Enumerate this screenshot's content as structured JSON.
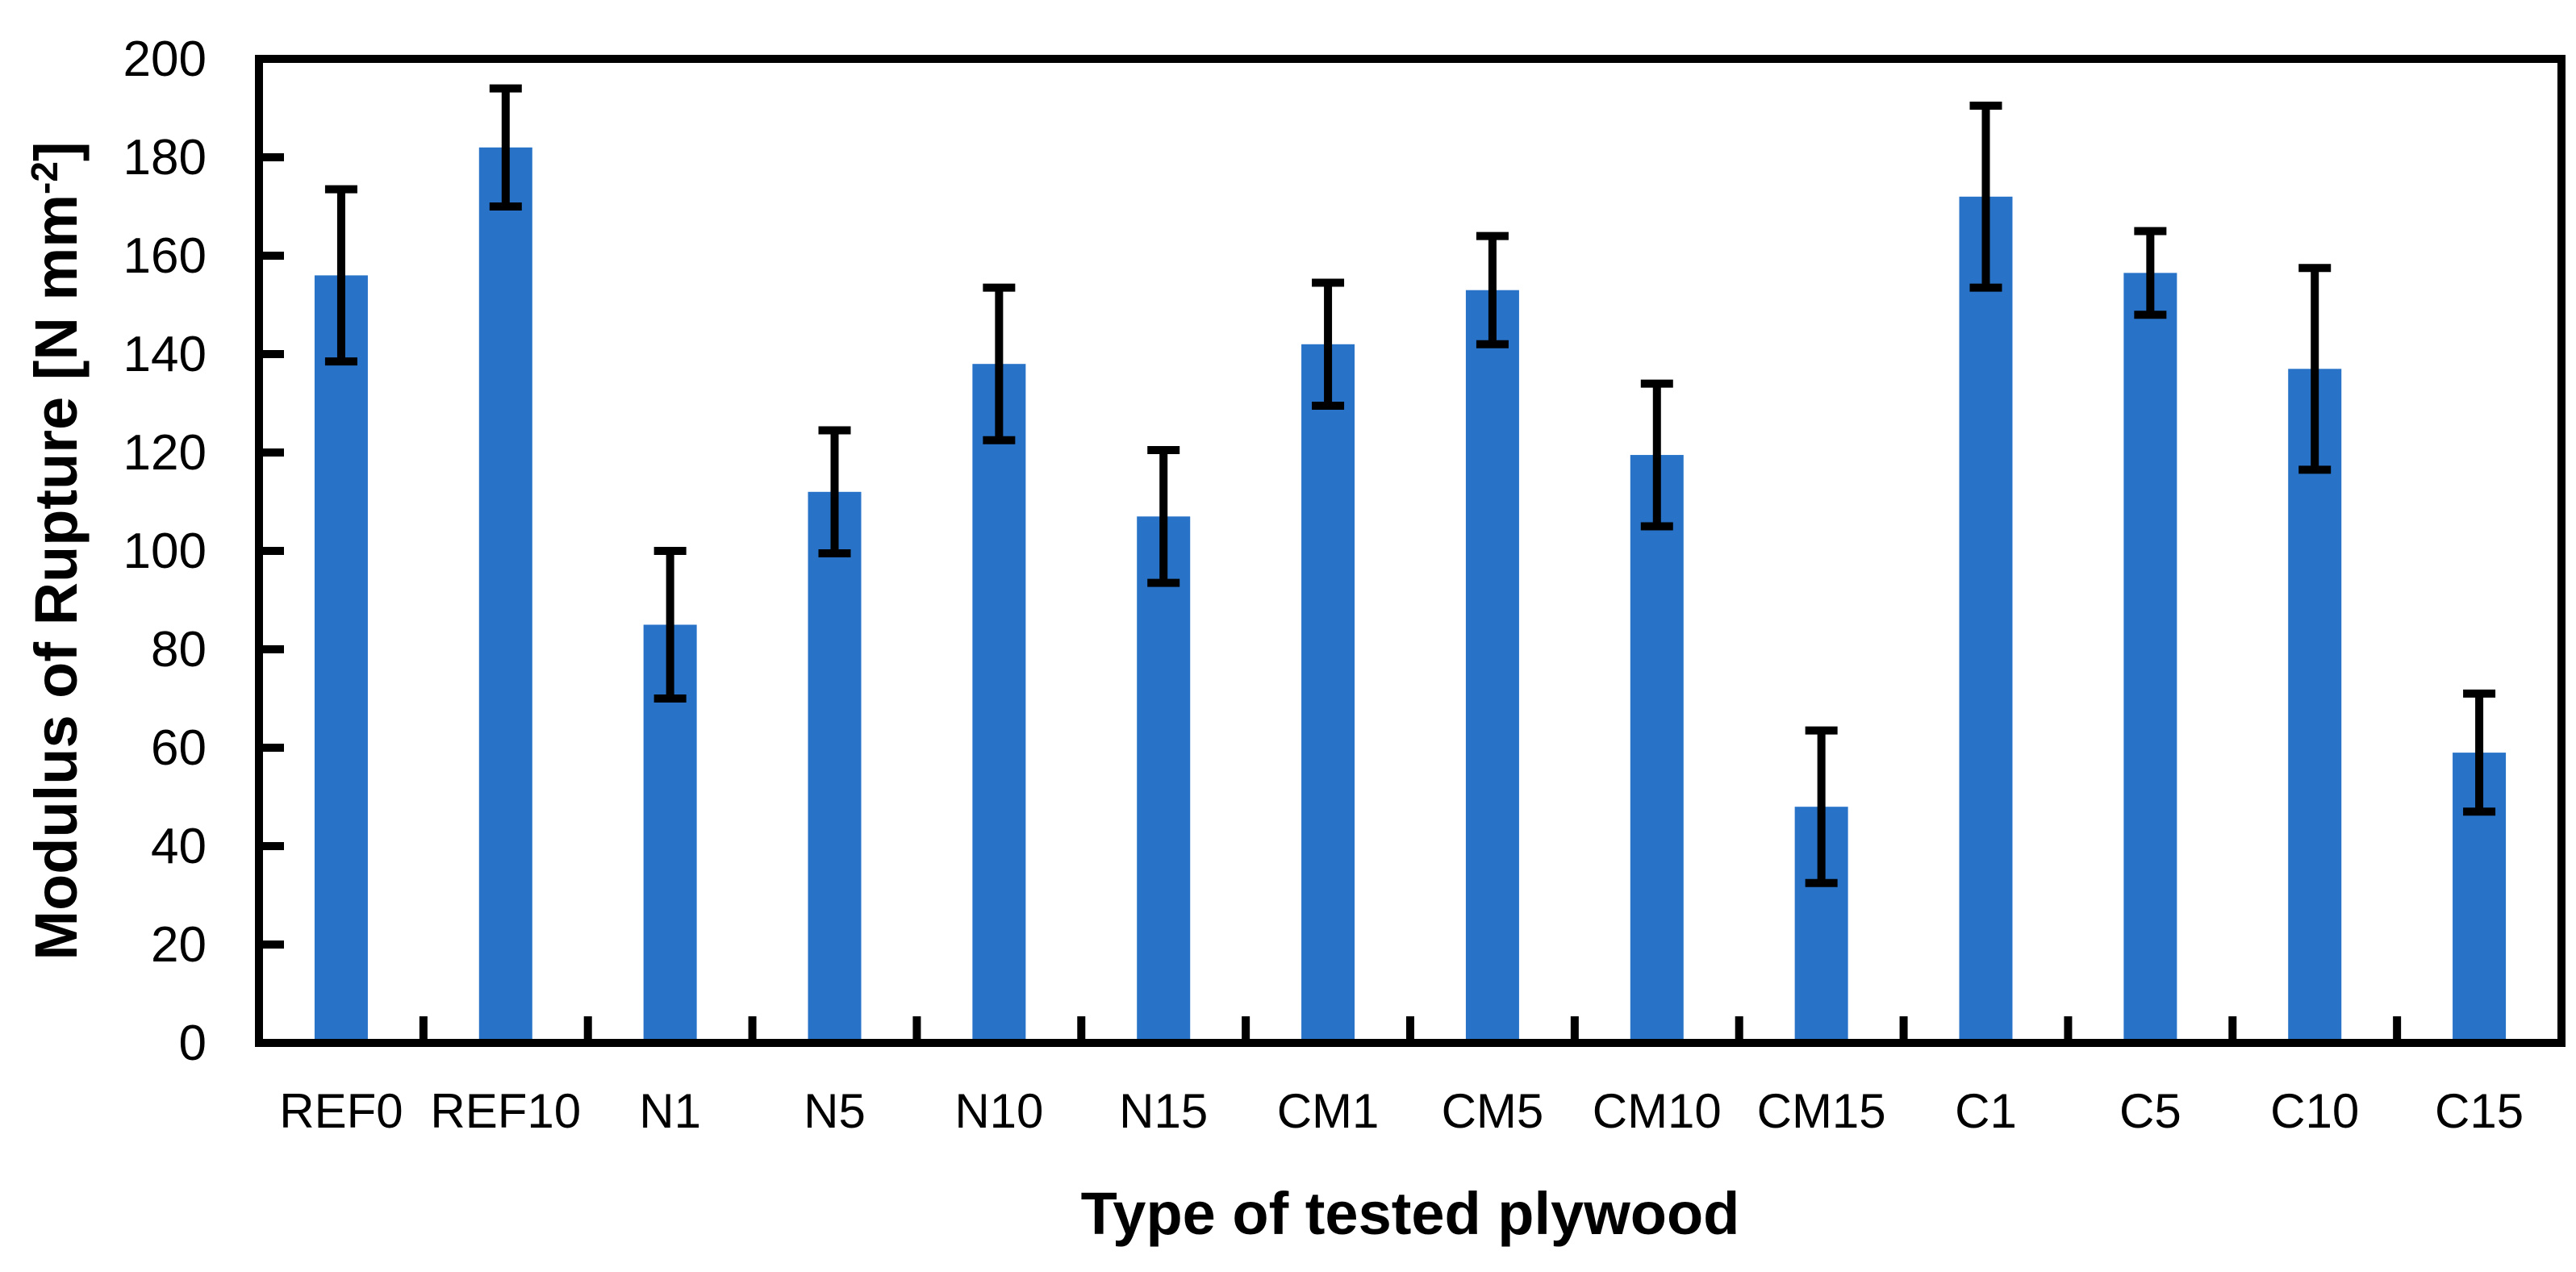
{
  "chart_data": {
    "type": "bar",
    "title": "",
    "xlabel": "Type of tested plywood",
    "ylabel": "Modulus of Rupture [N mm⁻²]",
    "ylabel_parts": {
      "pre": "Modulus of Rupture [N mm",
      "sup": "-2",
      "post": "]"
    },
    "categories": [
      "REF0",
      "REF10",
      "N1",
      "N5",
      "N10",
      "N15",
      "CM1",
      "CM5",
      "CM10",
      "CM15",
      "C1",
      "C5",
      "C10",
      "C15"
    ],
    "series": [
      {
        "name": "Modulus of Rupture",
        "values": [
          156,
          182,
          85,
          112,
          138,
          107,
          142,
          153,
          119.5,
          48,
          172,
          156.5,
          137,
          59
        ],
        "error_bars": [
          17.5,
          12,
          15,
          12.5,
          15.5,
          13.5,
          12.5,
          11,
          14.5,
          15.5,
          18.5,
          8.5,
          20.5,
          12
        ]
      }
    ],
    "ylim": [
      0,
      200
    ],
    "ytick_step": 20,
    "ytick_labels": [
      "0",
      "20",
      "40",
      "60",
      "80",
      "100",
      "120",
      "140",
      "160",
      "180",
      "200"
    ],
    "grid": false,
    "legend": false,
    "bar_color": "#2873C8",
    "axis_color": "#000000",
    "error_bar_color": "#000000"
  }
}
